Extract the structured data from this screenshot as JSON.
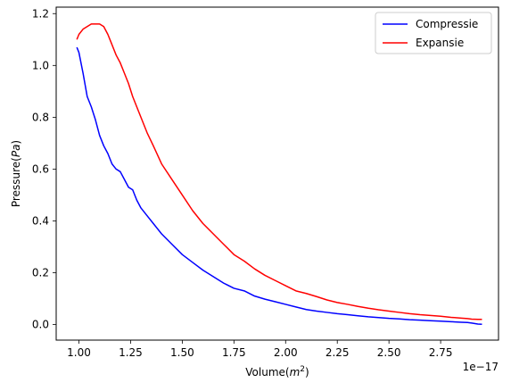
{
  "chart_data": {
    "type": "line",
    "title": "",
    "xlabel": "Volume",
    "xlabel_unit": "m",
    "xlabel_unit_exp": "2",
    "ylabel": "Pressure",
    "ylabel_unit": "Pa",
    "x_offset_text": "1e−17",
    "x_ticks": [
      "1.00",
      "1.25",
      "1.50",
      "1.75",
      "2.00",
      "2.25",
      "2.50",
      "2.75"
    ],
    "x_tick_values": [
      1.0,
      1.25,
      1.5,
      1.75,
      2.0,
      2.25,
      2.5,
      2.75
    ],
    "y_ticks": [
      "0.0",
      "0.2",
      "0.4",
      "0.6",
      "0.8",
      "1.0",
      "1.2"
    ],
    "y_tick_values": [
      0.0,
      0.2,
      0.4,
      0.6,
      0.8,
      1.0,
      1.2
    ],
    "xlim": [
      0.89,
      3.03
    ],
    "ylim": [
      -0.06,
      1.225
    ],
    "grid": false,
    "legend_position": "top-right",
    "series": [
      {
        "name": "Compressie",
        "color": "#0000ff",
        "x": [
          0.99,
          1.0,
          1.02,
          1.04,
          1.06,
          1.08,
          1.1,
          1.12,
          1.14,
          1.16,
          1.18,
          1.2,
          1.22,
          1.24,
          1.26,
          1.28,
          1.3,
          1.33,
          1.36,
          1.4,
          1.45,
          1.5,
          1.55,
          1.6,
          1.65,
          1.7,
          1.75,
          1.8,
          1.85,
          1.9,
          1.95,
          2.0,
          2.05,
          2.1,
          2.15,
          2.2,
          2.25,
          2.3,
          2.35,
          2.4,
          2.45,
          2.5,
          2.55,
          2.6,
          2.65,
          2.7,
          2.75,
          2.8,
          2.85,
          2.88,
          2.9,
          2.93,
          2.95
        ],
        "y": [
          1.07,
          1.05,
          0.97,
          0.88,
          0.84,
          0.79,
          0.73,
          0.69,
          0.66,
          0.62,
          0.6,
          0.59,
          0.56,
          0.53,
          0.52,
          0.48,
          0.45,
          0.42,
          0.39,
          0.35,
          0.31,
          0.27,
          0.24,
          0.21,
          0.185,
          0.16,
          0.14,
          0.13,
          0.11,
          0.098,
          0.088,
          0.078,
          0.068,
          0.058,
          0.052,
          0.047,
          0.042,
          0.038,
          0.034,
          0.03,
          0.027,
          0.024,
          0.022,
          0.019,
          0.017,
          0.015,
          0.013,
          0.011,
          0.009,
          0.008,
          0.006,
          0.002,
          0.001
        ]
      },
      {
        "name": "Expansie",
        "color": "#ff0000",
        "x": [
          0.99,
          1.0,
          1.02,
          1.04,
          1.06,
          1.08,
          1.1,
          1.12,
          1.14,
          1.16,
          1.18,
          1.2,
          1.22,
          1.24,
          1.26,
          1.28,
          1.3,
          1.33,
          1.36,
          1.4,
          1.45,
          1.5,
          1.55,
          1.6,
          1.65,
          1.7,
          1.75,
          1.8,
          1.85,
          1.9,
          1.95,
          2.0,
          2.05,
          2.1,
          2.15,
          2.2,
          2.25,
          2.3,
          2.35,
          2.4,
          2.45,
          2.5,
          2.55,
          2.6,
          2.65,
          2.7,
          2.75,
          2.8,
          2.85,
          2.88,
          2.9,
          2.93,
          2.95
        ],
        "y": [
          1.1,
          1.12,
          1.14,
          1.15,
          1.16,
          1.16,
          1.16,
          1.15,
          1.12,
          1.08,
          1.04,
          1.01,
          0.97,
          0.93,
          0.88,
          0.84,
          0.8,
          0.74,
          0.69,
          0.62,
          0.56,
          0.5,
          0.44,
          0.39,
          0.35,
          0.31,
          0.27,
          0.245,
          0.215,
          0.19,
          0.17,
          0.15,
          0.13,
          0.12,
          0.108,
          0.095,
          0.085,
          0.078,
          0.07,
          0.063,
          0.057,
          0.052,
          0.047,
          0.042,
          0.038,
          0.035,
          0.032,
          0.028,
          0.025,
          0.023,
          0.021,
          0.02,
          0.02
        ]
      }
    ]
  }
}
